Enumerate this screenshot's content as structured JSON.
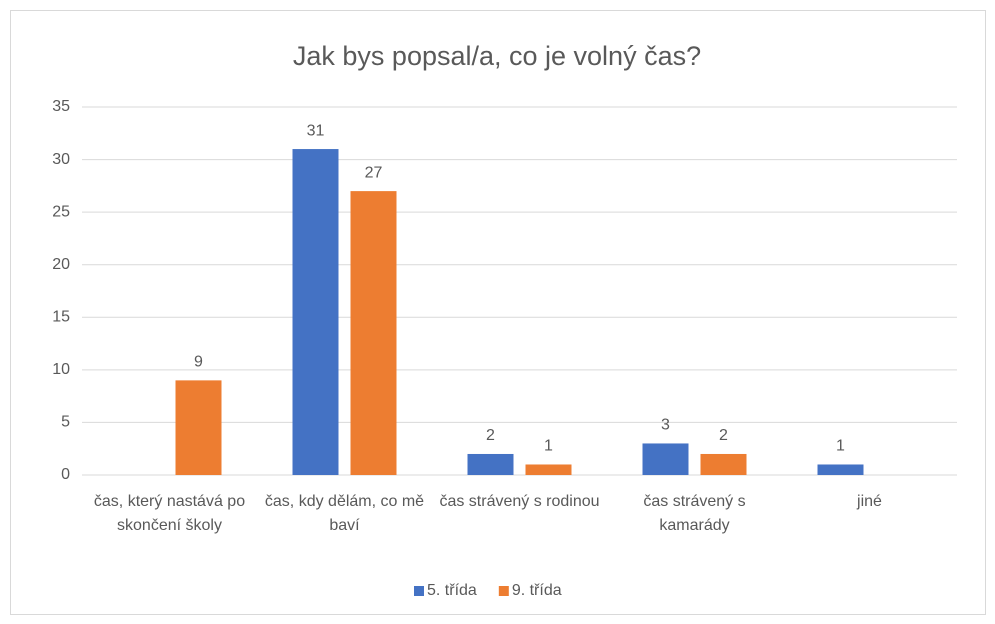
{
  "chart_data": {
    "type": "bar",
    "title": "Jak bys popsal/a, co je volný čas?",
    "categories": [
      "čas, který nastává po skončení školy",
      "čas, kdy dělám, co mě baví",
      "čas strávený s rodinou",
      "čas strávený s kamarády",
      "jiné"
    ],
    "series": [
      {
        "name": "5. třída",
        "color": "#4472c4",
        "values": [
          null,
          31,
          2,
          3,
          1
        ]
      },
      {
        "name": "9. třída",
        "color": "#ed7d31",
        "values": [
          9,
          27,
          1,
          2,
          null
        ]
      }
    ],
    "ylim": [
      0,
      35
    ],
    "yticks": [
      0,
      5,
      10,
      15,
      20,
      25,
      30,
      35
    ],
    "grid": true,
    "legend": "bottom"
  }
}
